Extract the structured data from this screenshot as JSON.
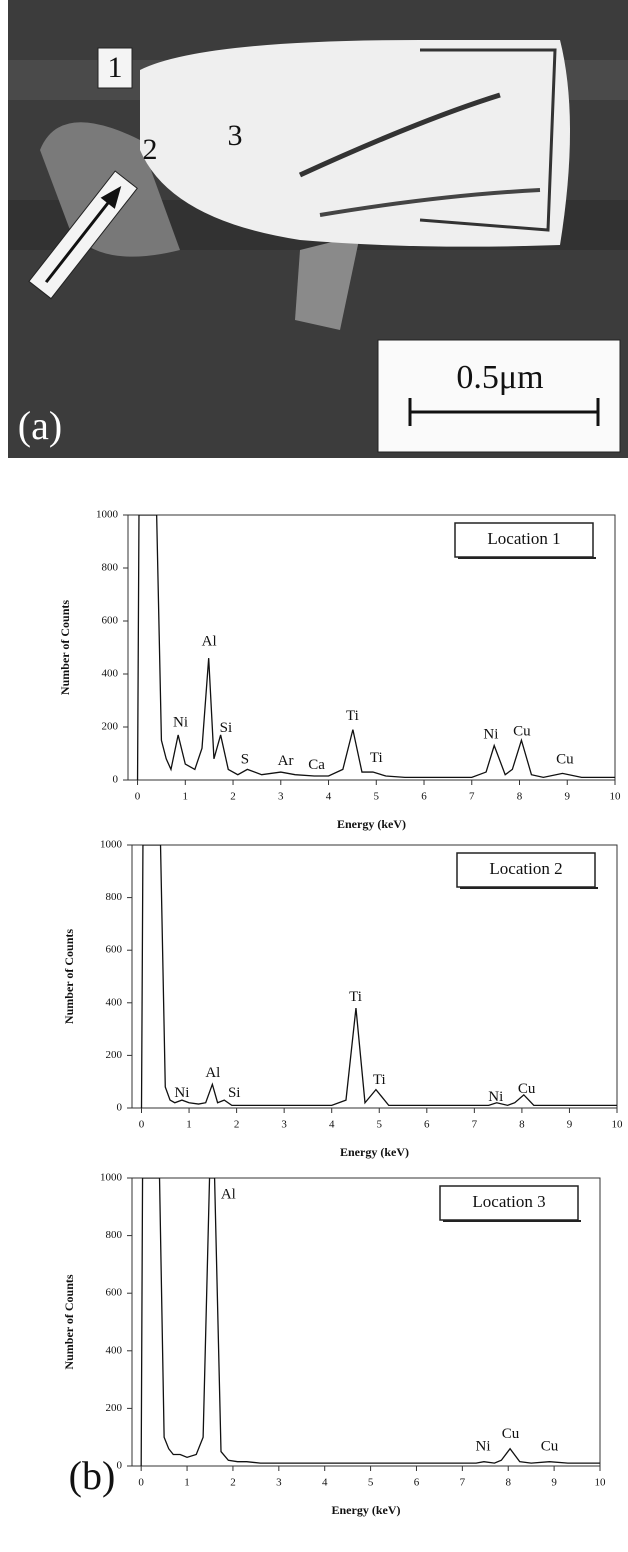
{
  "micrograph": {
    "panel_label": "(a)",
    "points": [
      "1",
      "2",
      "3"
    ],
    "scale_bar": "0.5μm"
  },
  "chart_data": [
    {
      "type": "line",
      "label": "Location 1",
      "xlabel": "Energy (keV)",
      "ylabel": "Number of Counts",
      "xlim": [
        -0.2,
        10
      ],
      "ylim": [
        0,
        1000
      ],
      "xticks": [
        0,
        1,
        2,
        3,
        4,
        5,
        6,
        7,
        8,
        9,
        10
      ],
      "yticks": [
        0,
        200,
        400,
        600,
        800,
        1000
      ],
      "color": "#111111",
      "x": [
        0,
        0.03,
        0.1,
        0.3,
        0.4,
        0.5,
        0.6,
        0.7,
        0.85,
        1.0,
        1.2,
        1.35,
        1.49,
        1.6,
        1.74,
        1.9,
        2.1,
        2.3,
        2.6,
        3.0,
        3.3,
        3.7,
        4.0,
        4.3,
        4.51,
        4.7,
        4.93,
        5.2,
        5.6,
        6.0,
        6.5,
        7.0,
        7.3,
        7.47,
        7.7,
        7.85,
        8.04,
        8.25,
        8.5,
        8.9,
        9.3,
        10.0
      ],
      "values": [
        0,
        1000,
        1000,
        1000,
        1000,
        150,
        80,
        40,
        170,
        60,
        40,
        120,
        460,
        80,
        170,
        40,
        20,
        40,
        20,
        30,
        20,
        15,
        15,
        40,
        190,
        30,
        30,
        15,
        10,
        10,
        10,
        10,
        30,
        130,
        20,
        40,
        150,
        20,
        10,
        25,
        10,
        10
      ],
      "annotations": [
        {
          "text": "Al",
          "x": 1.5,
          "y": 520
        },
        {
          "text": "Ni",
          "x": 0.9,
          "y": 215
        },
        {
          "text": "Si",
          "x": 1.85,
          "y": 195
        },
        {
          "text": "S",
          "x": 2.25,
          "y": 75
        },
        {
          "text": "Ar",
          "x": 3.1,
          "y": 70
        },
        {
          "text": "Ca",
          "x": 3.75,
          "y": 55
        },
        {
          "text": "Ti",
          "x": 4.5,
          "y": 240
        },
        {
          "text": "Ti",
          "x": 5.0,
          "y": 80
        },
        {
          "text": "Ni",
          "x": 7.4,
          "y": 170
        },
        {
          "text": "Cu",
          "x": 8.05,
          "y": 180
        },
        {
          "text": "Cu",
          "x": 8.95,
          "y": 75
        }
      ]
    },
    {
      "type": "line",
      "label": "Location 2",
      "xlabel": "Energy (keV)",
      "ylabel": "Number of Counts",
      "xlim": [
        -0.2,
        10
      ],
      "ylim": [
        0,
        1000
      ],
      "xticks": [
        0,
        1,
        2,
        3,
        4,
        5,
        6,
        7,
        8,
        9,
        10
      ],
      "yticks": [
        0,
        200,
        400,
        600,
        800,
        1000
      ],
      "color": "#111111",
      "x": [
        0,
        0.03,
        0.1,
        0.3,
        0.4,
        0.5,
        0.6,
        0.7,
        0.85,
        1.0,
        1.2,
        1.35,
        1.49,
        1.6,
        1.74,
        1.9,
        2.1,
        2.3,
        2.6,
        3.0,
        3.3,
        3.7,
        4.0,
        4.3,
        4.51,
        4.7,
        4.93,
        5.2,
        5.6,
        6.0,
        6.5,
        7.0,
        7.3,
        7.47,
        7.7,
        7.85,
        8.04,
        8.25,
        8.5,
        8.9,
        9.3,
        10.0
      ],
      "values": [
        0,
        1000,
        1000,
        1000,
        1000,
        80,
        30,
        20,
        30,
        20,
        15,
        20,
        90,
        20,
        30,
        10,
        10,
        10,
        10,
        10,
        10,
        10,
        10,
        30,
        380,
        20,
        70,
        10,
        10,
        10,
        10,
        10,
        10,
        20,
        10,
        20,
        50,
        10,
        10,
        10,
        10,
        10
      ],
      "annotations": [
        {
          "text": "Ni",
          "x": 0.85,
          "y": 55
        },
        {
          "text": "Al",
          "x": 1.5,
          "y": 130
        },
        {
          "text": "Si",
          "x": 1.95,
          "y": 55
        },
        {
          "text": "Ti",
          "x": 4.5,
          "y": 420
        },
        {
          "text": "Ti",
          "x": 5.0,
          "y": 105
        },
        {
          "text": "Ni",
          "x": 7.45,
          "y": 40
        },
        {
          "text": "Cu",
          "x": 8.1,
          "y": 70
        }
      ]
    },
    {
      "type": "line",
      "label": "Location 3",
      "panel_label": "(b)",
      "xlabel": "Energy (keV)",
      "ylabel": "Number of Counts",
      "xlim": [
        -0.2,
        10
      ],
      "ylim": [
        0,
        1000
      ],
      "xticks": [
        0,
        1,
        2,
        3,
        4,
        5,
        6,
        7,
        8,
        9,
        10
      ],
      "yticks": [
        0,
        200,
        400,
        600,
        800,
        1000
      ],
      "color": "#111111",
      "x": [
        0,
        0.03,
        0.1,
        0.3,
        0.4,
        0.5,
        0.6,
        0.7,
        0.85,
        1.0,
        1.2,
        1.35,
        1.49,
        1.6,
        1.74,
        1.9,
        2.1,
        2.3,
        2.6,
        3.0,
        3.3,
        3.7,
        4.0,
        4.3,
        4.51,
        4.7,
        4.93,
        5.2,
        5.6,
        6.0,
        6.5,
        7.0,
        7.3,
        7.47,
        7.7,
        7.85,
        8.04,
        8.25,
        8.5,
        8.9,
        9.3,
        10.0
      ],
      "values": [
        0,
        1000,
        1000,
        1000,
        1000,
        100,
        60,
        40,
        40,
        30,
        40,
        100,
        1000,
        1000,
        50,
        20,
        15,
        15,
        10,
        10,
        10,
        10,
        10,
        10,
        10,
        10,
        10,
        10,
        10,
        10,
        10,
        10,
        10,
        15,
        10,
        20,
        60,
        15,
        10,
        15,
        10,
        10
      ],
      "annotations": [
        {
          "text": "Al",
          "x": 1.9,
          "y": 940
        },
        {
          "text": "Ni",
          "x": 7.45,
          "y": 65
        },
        {
          "text": "Cu",
          "x": 8.05,
          "y": 110
        },
        {
          "text": "Cu",
          "x": 8.9,
          "y": 65
        }
      ]
    }
  ]
}
